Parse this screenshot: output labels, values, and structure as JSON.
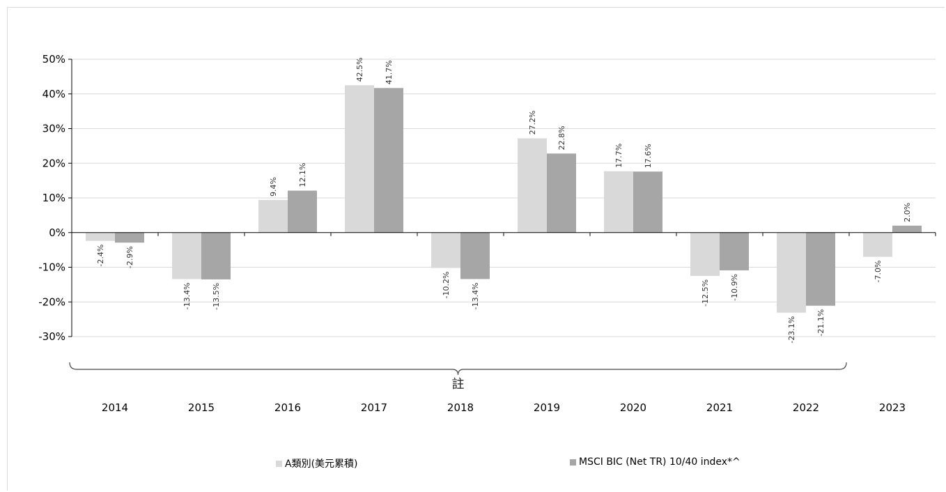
{
  "chart_data": {
    "type": "bar",
    "categories": [
      "2014",
      "2015",
      "2016",
      "2017",
      "2018",
      "2019",
      "2020",
      "2021",
      "2022",
      "2023"
    ],
    "series": [
      {
        "name": "A類別(美元累積)",
        "color": "#d9d9d9",
        "values": [
          -2.4,
          -13.4,
          9.4,
          42.5,
          -10.2,
          27.2,
          17.7,
          -12.5,
          -23.1,
          -7.0
        ],
        "labels": [
          "-2.4%",
          "-13.4%",
          "9.4%",
          "42.5%",
          "-10.2%",
          "27.2%",
          "17.7%",
          "-12.5%",
          "-23.1%",
          "-7.0%"
        ]
      },
      {
        "name": "MSCI BIC (Net TR) 10/40 index*^",
        "color": "#a6a6a6",
        "values": [
          -2.9,
          -13.5,
          12.1,
          41.7,
          -13.4,
          22.8,
          17.6,
          -10.9,
          -21.1,
          2.0
        ],
        "labels": [
          "-2.9%",
          "-13.5%",
          "12.1%",
          "41.7%",
          "-13.4%",
          "22.8%",
          "17.6%",
          "-10.9%",
          "-21.1%",
          "2.0%"
        ]
      }
    ],
    "ylim": [
      -30,
      50
    ],
    "yticks": [
      50,
      40,
      30,
      20,
      10,
      0,
      -10,
      -20,
      -30
    ],
    "ytick_labels": [
      "50%",
      "40%",
      "30%",
      "20%",
      "10%",
      "0%",
      "-10%",
      "-20%",
      "-30%"
    ],
    "grid": true,
    "legend_position": "bottom",
    "annotation": "註",
    "annotation_span": [
      "2014",
      "2022"
    ]
  }
}
